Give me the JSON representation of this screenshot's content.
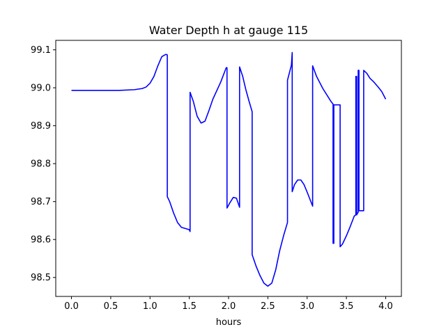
{
  "chart_data": {
    "type": "line",
    "title": "Water Depth h at gauge 115",
    "xlabel": "hours",
    "ylabel": "",
    "xlim": [
      -0.2,
      4.2
    ],
    "ylim": [
      98.45,
      99.125
    ],
    "xticks": [
      0.0,
      0.5,
      1.0,
      1.5,
      2.0,
      2.5,
      3.0,
      3.5,
      4.0
    ],
    "xtick_labels": [
      "0.0",
      "0.5",
      "1.0",
      "1.5",
      "2.0",
      "2.5",
      "3.0",
      "3.5",
      "4.0"
    ],
    "yticks": [
      98.5,
      98.6,
      98.7,
      98.8,
      98.9,
      99.0,
      99.1
    ],
    "ytick_labels": [
      "98.5",
      "98.6",
      "98.7",
      "98.8",
      "98.9",
      "99.0",
      "99.1"
    ],
    "grid": false,
    "series": [
      {
        "color": "#0000ff",
        "x": [
          0.0,
          0.3,
          0.6,
          0.8,
          0.9,
          0.95,
          1.0,
          1.05,
          1.1,
          1.15,
          1.2,
          1.22,
          1.22,
          1.25,
          1.3,
          1.35,
          1.4,
          1.45,
          1.5,
          1.51,
          1.51,
          1.55,
          1.6,
          1.65,
          1.7,
          1.75,
          1.8,
          1.9,
          1.97,
          1.98,
          1.98,
          2.02,
          2.06,
          2.1,
          2.14,
          2.14,
          2.18,
          2.22,
          2.26,
          2.3,
          2.3,
          2.35,
          2.4,
          2.45,
          2.5,
          2.55,
          2.6,
          2.65,
          2.7,
          2.75,
          2.75,
          2.8,
          2.81,
          2.81,
          2.84,
          2.88,
          2.92,
          2.96,
          3.0,
          3.07,
          3.07,
          3.12,
          3.2,
          3.3,
          3.33,
          3.33,
          3.34,
          3.34,
          3.38,
          3.42,
          3.42,
          3.45,
          3.5,
          3.55,
          3.6,
          3.62,
          3.62,
          3.63,
          3.63,
          3.65,
          3.65,
          3.66,
          3.66,
          3.72,
          3.72,
          3.76,
          3.8,
          3.85,
          3.9,
          3.95,
          4.0
        ],
        "y": [
          98.993,
          98.993,
          98.993,
          98.995,
          98.998,
          99.002,
          99.012,
          99.03,
          99.058,
          99.082,
          99.088,
          99.087,
          98.713,
          98.7,
          98.67,
          98.645,
          98.632,
          98.629,
          98.626,
          98.621,
          98.988,
          98.965,
          98.925,
          98.907,
          98.912,
          98.94,
          98.97,
          99.015,
          99.053,
          99.053,
          98.683,
          98.698,
          98.711,
          98.709,
          98.685,
          99.055,
          99.03,
          98.995,
          98.965,
          98.937,
          98.56,
          98.53,
          98.505,
          98.485,
          98.477,
          98.485,
          98.52,
          98.57,
          98.61,
          98.645,
          99.02,
          99.06,
          99.093,
          98.726,
          98.745,
          98.757,
          98.757,
          98.745,
          98.725,
          98.688,
          99.058,
          99.03,
          98.998,
          98.965,
          98.957,
          98.59,
          98.59,
          98.955,
          98.955,
          98.955,
          98.581,
          98.588,
          98.61,
          98.635,
          98.662,
          98.665,
          99.03,
          99.03,
          98.665,
          98.672,
          99.046,
          99.046,
          98.676,
          98.676,
          99.046,
          99.038,
          99.025,
          99.015,
          99.003,
          98.99,
          98.97
        ]
      }
    ]
  }
}
